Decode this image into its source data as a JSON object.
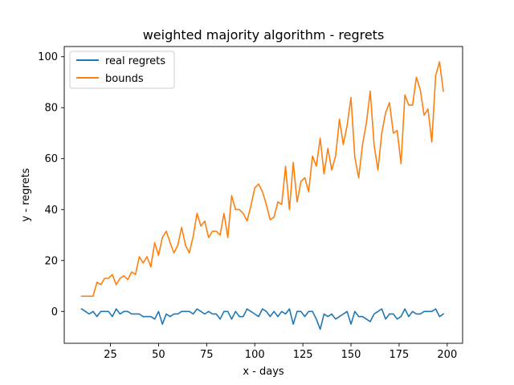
{
  "chart_data": {
    "type": "line",
    "title": "weighted majority algorithm - regrets",
    "xlabel": "x - days",
    "ylabel": "y - regrets",
    "xlim": [
      1,
      208
    ],
    "ylim": [
      -12.5,
      104
    ],
    "xticks": [
      25,
      50,
      75,
      100,
      125,
      150,
      175,
      200
    ],
    "yticks": [
      0,
      20,
      40,
      60,
      80,
      100
    ],
    "grid": false,
    "legend_position": "upper left",
    "x": [
      10,
      12,
      14,
      16,
      18,
      20,
      22,
      24,
      26,
      28,
      30,
      32,
      34,
      36,
      38,
      40,
      42,
      44,
      46,
      48,
      50,
      52,
      54,
      56,
      58,
      60,
      62,
      64,
      66,
      68,
      70,
      72,
      74,
      76,
      78,
      80,
      82,
      84,
      86,
      88,
      90,
      92,
      94,
      96,
      98,
      100,
      102,
      104,
      106,
      108,
      110,
      112,
      114,
      116,
      118,
      120,
      122,
      124,
      126,
      128,
      130,
      132,
      134,
      136,
      138,
      140,
      142,
      144,
      146,
      148,
      150,
      152,
      154,
      156,
      158,
      160,
      162,
      164,
      166,
      168,
      170,
      172,
      174,
      176,
      178,
      180,
      182,
      184,
      186,
      188,
      190,
      192,
      194,
      196,
      198
    ],
    "series": [
      {
        "name": "real regrets",
        "color": "#1f77b4",
        "values": [
          1,
          0,
          -1,
          0,
          -2,
          0,
          0,
          0,
          -2,
          1,
          -1,
          0,
          0,
          -1,
          -1,
          -1,
          -2,
          -2,
          -2,
          -3,
          0,
          -5,
          -1,
          -2,
          -1,
          -1,
          0,
          0,
          0,
          -1,
          1,
          0,
          -1,
          0,
          -1,
          -1,
          -3,
          0,
          0,
          -3,
          0,
          -2,
          -2,
          1,
          0,
          -1,
          -2,
          1,
          0,
          -2,
          0,
          -2,
          0,
          -1,
          1,
          -5,
          0,
          0,
          -2,
          0,
          0,
          -3,
          -7,
          -1,
          -2,
          -1,
          -3,
          -2,
          -1,
          0,
          -5,
          0,
          -2,
          -2,
          -3,
          -4,
          -1,
          0,
          1,
          -3,
          -1,
          -1,
          -3,
          -2,
          1,
          -2,
          0,
          -1,
          -1,
          0,
          0,
          0,
          1,
          -2,
          -1
        ]
      },
      {
        "name": "bounds",
        "color": "#ff7f0e",
        "values": [
          6,
          6,
          6,
          6,
          11.5,
          10.5,
          13,
          13,
          14.5,
          10.5,
          13,
          14,
          12.5,
          15.5,
          14.5,
          21.5,
          19,
          21.5,
          17.5,
          27,
          22,
          29,
          31.5,
          27,
          23,
          26,
          33,
          26,
          23,
          29.5,
          38.5,
          33.5,
          35.5,
          29,
          31.5,
          31.5,
          30,
          38.5,
          29,
          45.5,
          40,
          40,
          38.5,
          35.5,
          41.5,
          48.5,
          50,
          47,
          42,
          36,
          37,
          43,
          42,
          57,
          40,
          58.5,
          43,
          51,
          52.5,
          47,
          61,
          57,
          68,
          54,
          64,
          55.5,
          61,
          75.5,
          65.5,
          73,
          84,
          60.5,
          52.5,
          65.5,
          74,
          86.5,
          65.5,
          55.5,
          70,
          78,
          82,
          70,
          71,
          58,
          85,
          81,
          81,
          92,
          87,
          77,
          79.5,
          66.5,
          92.5,
          98,
          86.5
        ]
      }
    ]
  }
}
